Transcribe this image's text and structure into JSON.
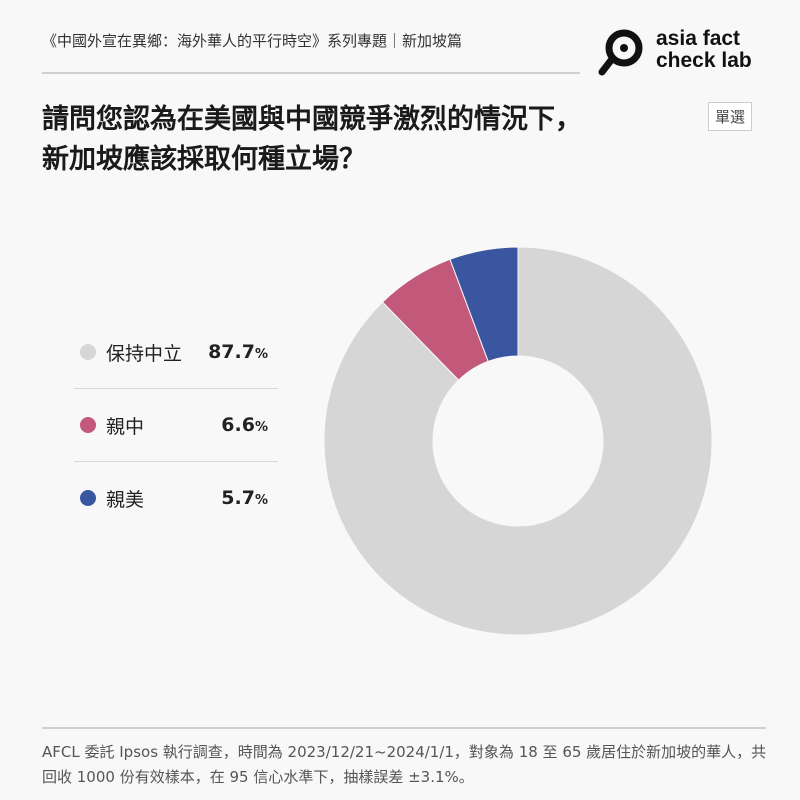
{
  "header": {
    "series_title": "《中國外宣在異鄉：海外華人的平行時空》系列專題｜新加坡篇",
    "logo_text": "asia fact check lab"
  },
  "question": {
    "line1": "請問您認為在美國與中國競爭激烈的情況下，",
    "line2": "新加坡應該採取何種立場？",
    "badge": "單選"
  },
  "chart_data": {
    "type": "pie",
    "style": "donut",
    "start": "top, clockwise",
    "categories": [
      "保持中立",
      "親中",
      "親美"
    ],
    "values": [
      87.7,
      6.6,
      5.7
    ],
    "value_labels": [
      "87.7",
      "6.6",
      "5.7"
    ],
    "unit": "%",
    "colors": [
      "#d6d6d6",
      "#c2587a",
      "#3a56a0"
    ],
    "legend_placement": "left"
  },
  "footer": {
    "note": "AFCL 委託 Ipsos 執行調查，時間為 2023/12/21~2024/1/1，對象為 18 至 65 歲居住於新加坡的華人，共回收 1000 份有效樣本，在 95 信心水準下，抽樣誤差 ±3.1%。"
  }
}
